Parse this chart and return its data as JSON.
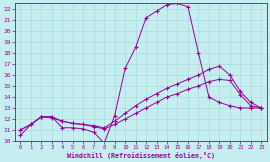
{
  "title": "",
  "xlabel": "Windchill (Refroidissement éolien,°C)",
  "xlim": [
    -0.5,
    23.5
  ],
  "ylim": [
    10,
    22.5
  ],
  "xticks": [
    0,
    1,
    2,
    3,
    4,
    5,
    6,
    7,
    8,
    9,
    10,
    11,
    12,
    13,
    14,
    15,
    16,
    17,
    18,
    19,
    20,
    21,
    22,
    23
  ],
  "yticks": [
    10,
    11,
    12,
    13,
    14,
    15,
    16,
    17,
    18,
    19,
    20,
    21,
    22
  ],
  "bg_color": "#c6eef0",
  "grid_color": "#9ed8dc",
  "line_color": "#990099",
  "line1_x": [
    0,
    1,
    2,
    3,
    4,
    5,
    6,
    7,
    8,
    9,
    10,
    11,
    12,
    13,
    14,
    15,
    16,
    17,
    18,
    19,
    20,
    21,
    22,
    23
  ],
  "line1_y": [
    10.5,
    11.5,
    12.2,
    12.2,
    11.2,
    11.2,
    11.1,
    10.8,
    9.8,
    12.3,
    16.6,
    18.5,
    21.2,
    21.8,
    22.4,
    22.5,
    22.2,
    18.0,
    14.0,
    13.5,
    13.2,
    13.0,
    13.0,
    13.0
  ],
  "line2_x": [
    0,
    1,
    2,
    3,
    4,
    5,
    6,
    7,
    8,
    9,
    10,
    11,
    12,
    13,
    14,
    15,
    16,
    17,
    18,
    19,
    20,
    21,
    22,
    23
  ],
  "line2_y": [
    11.0,
    11.5,
    12.2,
    12.2,
    11.8,
    11.6,
    11.5,
    11.4,
    11.2,
    11.8,
    12.5,
    13.2,
    13.8,
    14.3,
    14.8,
    15.2,
    15.6,
    16.0,
    16.5,
    16.8,
    16.0,
    14.5,
    13.5,
    13.0
  ],
  "line3_x": [
    0,
    1,
    2,
    3,
    4,
    5,
    6,
    7,
    8,
    9,
    10,
    11,
    12,
    13,
    14,
    15,
    16,
    17,
    18,
    19,
    20,
    21,
    22,
    23
  ],
  "line3_y": [
    11.0,
    11.5,
    12.2,
    12.1,
    11.8,
    11.6,
    11.5,
    11.3,
    11.1,
    11.5,
    12.0,
    12.5,
    13.0,
    13.5,
    14.0,
    14.3,
    14.7,
    15.0,
    15.4,
    15.6,
    15.5,
    14.2,
    13.2,
    13.0
  ]
}
